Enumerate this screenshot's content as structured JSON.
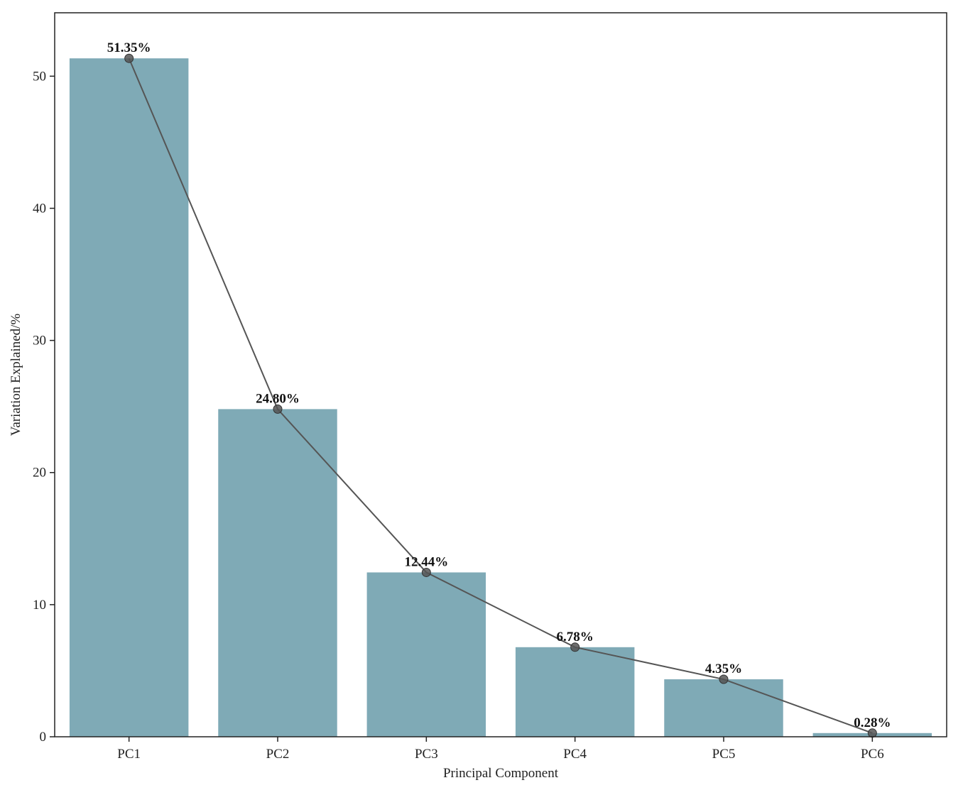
{
  "chart_data": {
    "type": "bar",
    "categories": [
      "PC1",
      "PC2",
      "PC3",
      "PC4",
      "PC5",
      "PC6"
    ],
    "values": [
      51.35,
      24.8,
      12.44,
      6.78,
      4.35,
      0.28
    ],
    "data_labels": [
      "51.35%",
      "24.80%",
      "12.44%",
      "6.78%",
      "4.35%",
      "0.28%"
    ],
    "overlay": {
      "type": "line",
      "marker": "circle",
      "values": [
        51.35,
        24.8,
        12.44,
        6.78,
        4.35,
        0.28
      ]
    },
    "title": "",
    "xlabel": "Principal Component",
    "ylabel": "Variation Explained/%",
    "ylim": [
      0,
      54.8
    ],
    "yticks": [
      0,
      10,
      20,
      30,
      40,
      50
    ],
    "grid": false,
    "colors": {
      "bar": "#7faab6",
      "line": "#555555",
      "marker": "#555555",
      "axis": "#222222"
    }
  }
}
